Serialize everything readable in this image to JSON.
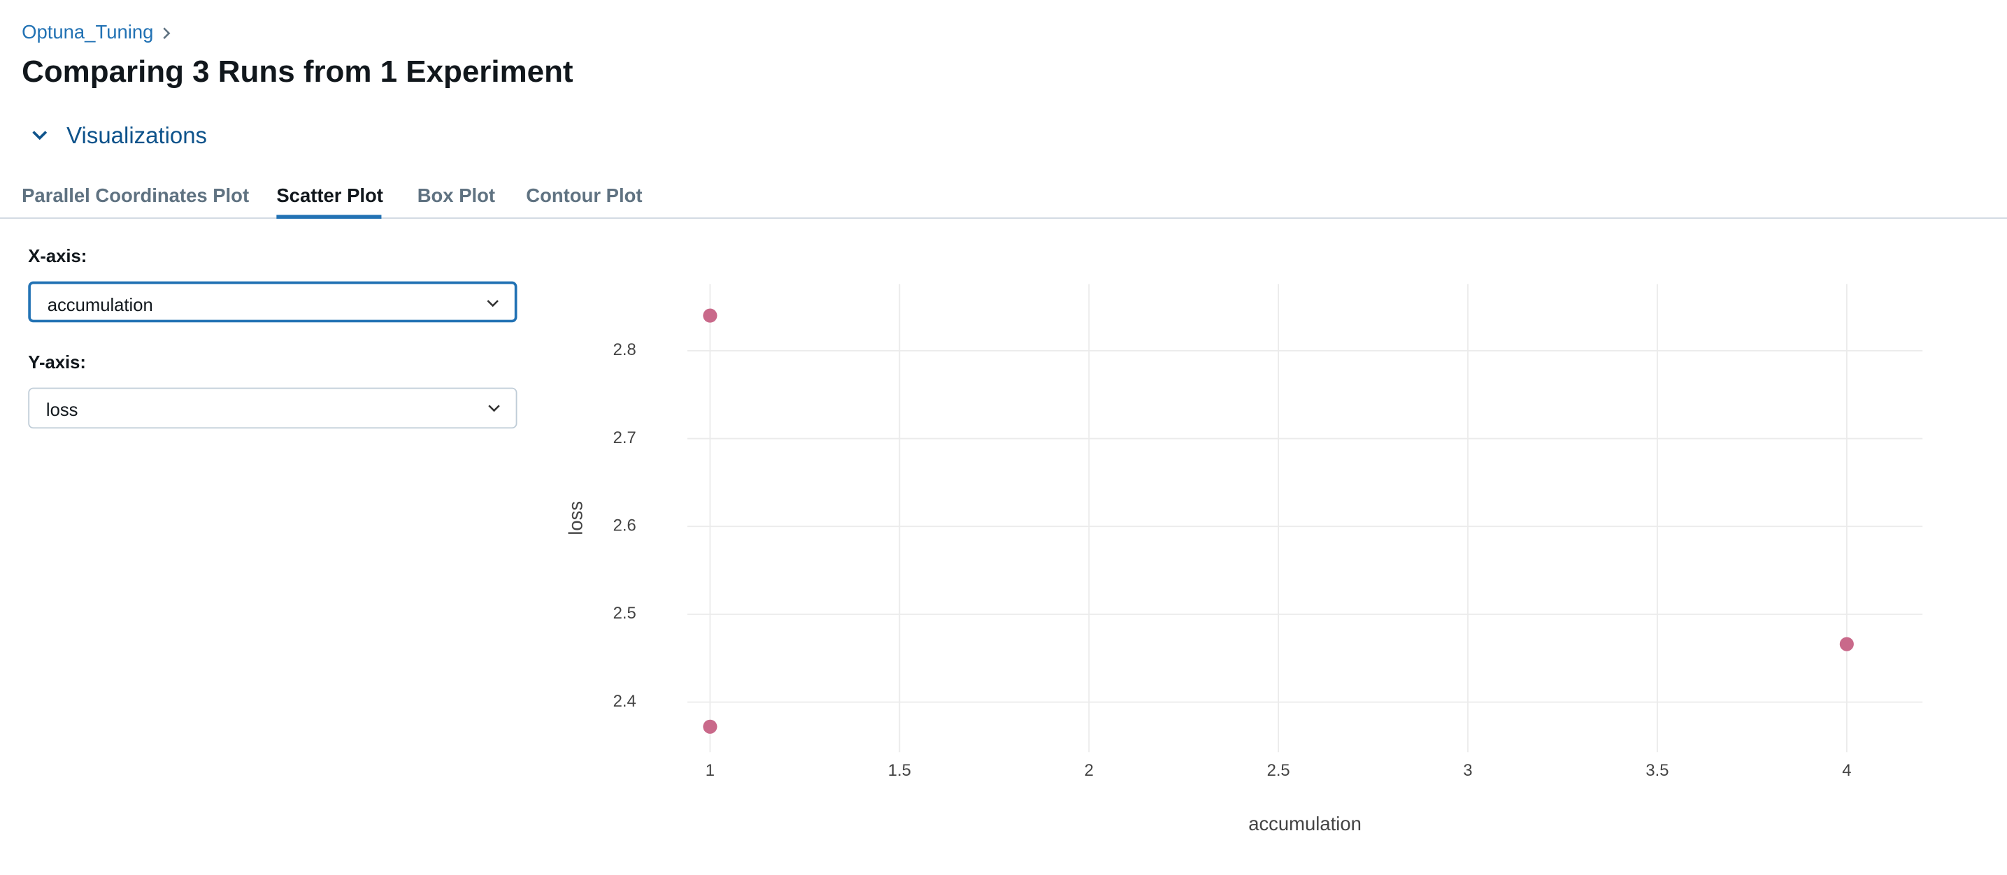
{
  "breadcrumb": "Optuna_Tuning",
  "title": "Comparing 3 Runs from 1 Experiment",
  "section": "Visualizations",
  "tabs": [
    "Parallel Coordinates Plot",
    "Scatter Plot",
    "Box Plot",
    "Contour Plot"
  ],
  "controls": [
    {
      "label": "X-axis:",
      "value": "accumulation"
    },
    {
      "label": "Y-axis:",
      "value": "loss"
    }
  ],
  "chart_data": {
    "type": "scatter",
    "x": [
      1,
      1,
      4
    ],
    "values": [
      2.84,
      2.372,
      2.466
    ],
    "color": "#c9698a",
    "xlabel": "accumulation",
    "ylabel": "loss",
    "xlim": [
      0.94,
      4.2
    ],
    "ylim": [
      2.343,
      2.876
    ],
    "xticks": [
      1,
      1.5,
      2,
      2.5,
      3,
      3.5,
      4
    ],
    "yticks": [
      2.4,
      2.5,
      2.6,
      2.7,
      2.8
    ],
    "grid": true
  }
}
